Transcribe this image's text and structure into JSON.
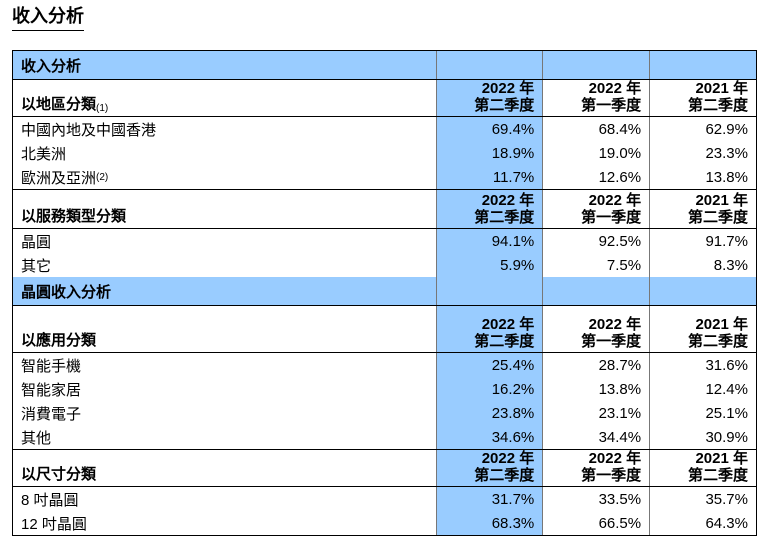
{
  "title": "收入分析",
  "sections": [
    {
      "title": "收入分析",
      "groups": [
        {
          "label": "以地區分類",
          "note": "(1)",
          "columns": [
            {
              "year": "2022 年",
              "quarter": "第二季度"
            },
            {
              "year": "2022 年",
              "quarter": "第一季度"
            },
            {
              "year": "2021 年",
              "quarter": "第二季度"
            }
          ],
          "rows": [
            {
              "label": "中國內地及中國香港",
              "values": [
                "69.4%",
                "68.4%",
                "62.9%"
              ]
            },
            {
              "label": "北美洲",
              "values": [
                "18.9%",
                "19.0%",
                "23.3%"
              ]
            },
            {
              "label": "歐洲及亞洲",
              "note": "(2)",
              "values": [
                "11.7%",
                "12.6%",
                "13.8%"
              ]
            }
          ]
        },
        {
          "label": "以服務類型分類",
          "columns": [
            {
              "year": "2022 年",
              "quarter": "第二季度"
            },
            {
              "year": "2022 年",
              "quarter": "第一季度"
            },
            {
              "year": "2021 年",
              "quarter": "第二季度"
            }
          ],
          "rows": [
            {
              "label": "晶圓",
              "values": [
                "94.1%",
                "92.5%",
                "91.7%"
              ]
            },
            {
              "label": "其它",
              "values": [
                "5.9%",
                "7.5%",
                "8.3%"
              ]
            }
          ]
        }
      ]
    },
    {
      "title": "晶圓收入分析",
      "groups": [
        {
          "label": "以應用分類",
          "columns": [
            {
              "year": "2022 年",
              "quarter": "第二季度"
            },
            {
              "year": "2022 年",
              "quarter": "第一季度"
            },
            {
              "year": "2021 年",
              "quarter": "第二季度"
            }
          ],
          "rows": [
            {
              "label": "智能手機",
              "values": [
                "25.4%",
                "28.7%",
                "31.6%"
              ]
            },
            {
              "label": "智能家居",
              "values": [
                "16.2%",
                "13.8%",
                "12.4%"
              ]
            },
            {
              "label": "消費電子",
              "values": [
                "23.8%",
                "23.1%",
                "25.1%"
              ]
            },
            {
              "label": "其他",
              "values": [
                "34.6%",
                "34.4%",
                "30.9%"
              ]
            }
          ]
        },
        {
          "label": "以尺寸分類",
          "columns": [
            {
              "year": "2022 年",
              "quarter": "第二季度"
            },
            {
              "year": "2022 年",
              "quarter": "第一季度"
            },
            {
              "year": "2021 年",
              "quarter": "第二季度"
            }
          ],
          "rows": [
            {
              "label": "8 吋晶圓",
              "values": [
                "31.7%",
                "33.5%",
                "35.7%"
              ]
            },
            {
              "label": "12 吋晶圓",
              "values": [
                "68.3%",
                "66.5%",
                "64.3%"
              ]
            }
          ]
        }
      ]
    }
  ]
}
